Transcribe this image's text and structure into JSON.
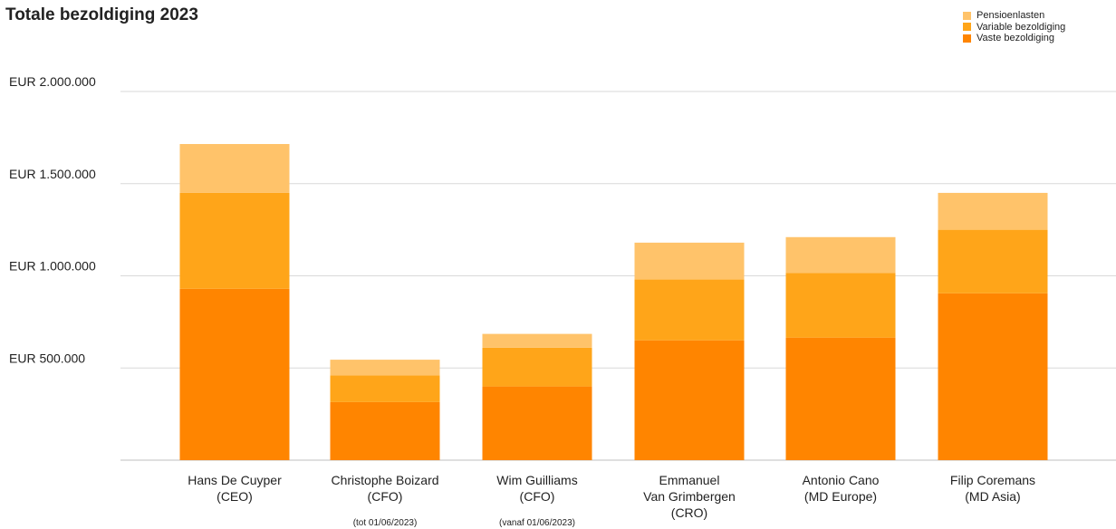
{
  "chart_data": {
    "type": "bar",
    "stacked": true,
    "title": "Totale bezoldiging 2023",
    "ylim": [
      0,
      2000000
    ],
    "yticks": [
      {
        "value": 500000,
        "label": "EUR 500.000"
      },
      {
        "value": 1000000,
        "label": "EUR 1.000.000"
      },
      {
        "value": 1500000,
        "label": "EUR 1.500.000"
      },
      {
        "value": 2000000,
        "label": "EUR 2.000.000"
      }
    ],
    "grid": true,
    "legend_position": "top-right",
    "categories": [
      {
        "lines": [
          "Hans De Cuyper",
          "(CEO)"
        ],
        "note": ""
      },
      {
        "lines": [
          "Christophe Boizard",
          "(CFO)"
        ],
        "note": "(tot 01/06/2023)"
      },
      {
        "lines": [
          "Wim Guilliams",
          "(CFO)"
        ],
        "note": "(vanaf 01/06/2023)"
      },
      {
        "lines": [
          "Emmanuel",
          "Van Grimbergen",
          "(CRO)"
        ],
        "note": ""
      },
      {
        "lines": [
          "Antonio Cano",
          "(MD Europe)"
        ],
        "note": ""
      },
      {
        "lines": [
          "Filip Coremans",
          "(MD Asia)"
        ],
        "note": ""
      }
    ],
    "series": [
      {
        "name": "Vaste bezoldiging",
        "color": "#ff8500",
        "values": [
          930000,
          315000,
          400000,
          650000,
          665000,
          905000
        ]
      },
      {
        "name": "Variable bezoldiging",
        "color": "#ffa519",
        "values": [
          520000,
          145000,
          210000,
          330000,
          350000,
          345000
        ]
      },
      {
        "name": "Pensioenlasten",
        "color": "#ffc36a",
        "values": [
          265000,
          85000,
          75000,
          200000,
          195000,
          200000
        ]
      }
    ]
  }
}
